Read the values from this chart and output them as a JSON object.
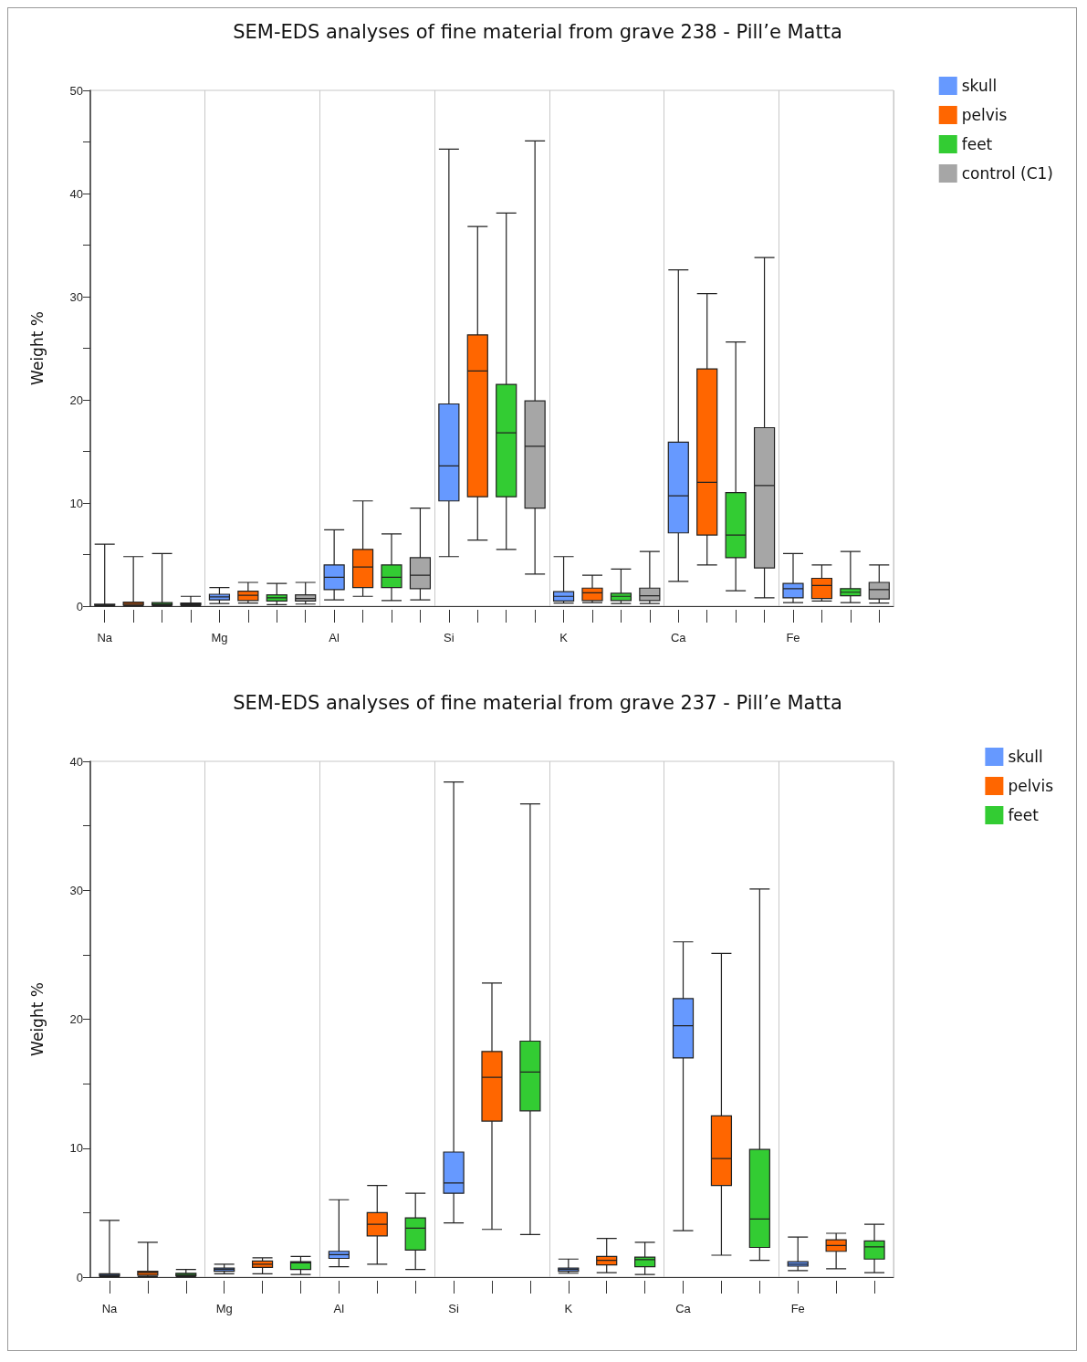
{
  "chart_data": [
    {
      "type": "box",
      "title": "SEM-EDS analyses of fine material from grave 238 - Pill’e Matta",
      "ylabel": "Weight %",
      "categories": [
        "Na",
        null,
        null,
        null,
        "Mg",
        null,
        null,
        null,
        "Al",
        null,
        null,
        null,
        "Si",
        null,
        null,
        null,
        "K",
        null,
        null,
        null,
        "Ca",
        null,
        null,
        null,
        "Fe",
        null,
        null,
        null
      ],
      "ylim": [
        0,
        50
      ],
      "yticks": [
        0,
        {
          "value": 5,
          "label": null
        },
        10,
        {
          "value": 15,
          "label": null
        },
        20,
        {
          "value": 25,
          "label": null
        },
        30,
        {
          "value": 35,
          "label": null
        },
        40,
        {
          "value": 45,
          "label": null
        },
        50
      ],
      "grid": "x",
      "legend": "top right",
      "series": [
        {
          "name": "skull",
          "color": "#6699ff",
          "boxes": [
            {
              "low": 0.05,
              "q1": 0.08,
              "median": 0.1,
              "q3": 0.18,
              "high": 6.0
            },
            null,
            null,
            null,
            {
              "low": 0.25,
              "q1": 0.6,
              "median": 0.9,
              "q3": 1.15,
              "high": 1.8
            },
            null,
            null,
            null,
            {
              "low": 0.6,
              "q1": 1.6,
              "median": 2.8,
              "q3": 4.0,
              "high": 7.4
            },
            null,
            null,
            null,
            {
              "low": 4.8,
              "q1": 10.2,
              "median": 13.6,
              "q3": 19.6,
              "high": 44.3
            },
            null,
            null,
            null,
            {
              "low": 0.3,
              "q1": 0.5,
              "median": 0.95,
              "q3": 1.4,
              "high": 4.8
            },
            null,
            null,
            null,
            {
              "low": 2.4,
              "q1": 7.1,
              "median": 10.7,
              "q3": 15.9,
              "high": 32.6
            },
            null,
            null,
            null,
            {
              "low": 0.35,
              "q1": 0.8,
              "median": 1.7,
              "q3": 2.2,
              "high": 5.1
            },
            null,
            null,
            null
          ]
        },
        {
          "name": "pelvis",
          "color": "#ff6600",
          "boxes": [
            null,
            {
              "low": 0.05,
              "q1": 0.1,
              "median": 0.25,
              "q3": 0.4,
              "high": 4.8
            },
            null,
            null,
            null,
            {
              "low": 0.3,
              "q1": 0.55,
              "median": 1.05,
              "q3": 1.45,
              "high": 2.3
            },
            null,
            null,
            null,
            {
              "low": 0.95,
              "q1": 1.8,
              "median": 3.8,
              "q3": 5.5,
              "high": 10.2
            },
            null,
            null,
            null,
            {
              "low": 6.4,
              "q1": 10.6,
              "median": 22.8,
              "q3": 26.3,
              "high": 36.8
            },
            null,
            null,
            null,
            {
              "low": 0.35,
              "q1": 0.55,
              "median": 1.3,
              "q3": 1.75,
              "high": 3.0
            },
            null,
            null,
            null,
            {
              "low": 4.0,
              "q1": 6.9,
              "median": 12.0,
              "q3": 23.0,
              "high": 30.3
            },
            null,
            null,
            null,
            {
              "low": 0.5,
              "q1": 0.75,
              "median": 2.0,
              "q3": 2.7,
              "high": 4.0
            },
            null,
            null
          ]
        },
        {
          "name": "feet",
          "color": "#33cc33",
          "boxes": [
            null,
            null,
            {
              "low": 0.05,
              "q1": 0.1,
              "median": 0.2,
              "q3": 0.35,
              "high": 5.1
            },
            null,
            null,
            null,
            {
              "low": 0.15,
              "q1": 0.5,
              "median": 0.8,
              "q3": 1.1,
              "high": 2.2
            },
            null,
            null,
            null,
            {
              "low": 0.55,
              "q1": 1.8,
              "median": 2.8,
              "q3": 4.0,
              "high": 7.0
            },
            null,
            null,
            null,
            {
              "low": 5.5,
              "q1": 10.6,
              "median": 16.8,
              "q3": 21.5,
              "high": 38.1
            },
            null,
            null,
            null,
            {
              "low": 0.25,
              "q1": 0.55,
              "median": 0.95,
              "q3": 1.25,
              "high": 3.6
            },
            null,
            null,
            null,
            {
              "low": 1.5,
              "q1": 4.7,
              "median": 6.9,
              "q3": 11.0,
              "high": 25.6
            },
            null,
            null,
            null,
            {
              "low": 0.35,
              "q1": 1.0,
              "median": 1.35,
              "q3": 1.7,
              "high": 5.3
            },
            null
          ]
        },
        {
          "name": "control (C1)",
          "color": "#a6a6a6",
          "boxes": [
            null,
            null,
            null,
            {
              "low": 0.05,
              "q1": 0.1,
              "median": 0.2,
              "q3": 0.3,
              "high": 0.95
            },
            null,
            null,
            null,
            {
              "low": 0.2,
              "q1": 0.5,
              "median": 0.75,
              "q3": 1.1,
              "high": 2.3
            },
            null,
            null,
            null,
            {
              "low": 0.6,
              "q1": 1.7,
              "median": 3.0,
              "q3": 4.7,
              "high": 9.5
            },
            null,
            null,
            null,
            {
              "low": 3.1,
              "q1": 9.5,
              "median": 15.5,
              "q3": 19.9,
              "high": 45.1
            },
            null,
            null,
            null,
            {
              "low": 0.25,
              "q1": 0.55,
              "median": 1.0,
              "q3": 1.75,
              "high": 5.3
            },
            null,
            null,
            null,
            {
              "low": 0.8,
              "q1": 3.7,
              "median": 11.7,
              "q3": 17.3,
              "high": 33.8
            },
            null,
            null,
            null,
            {
              "low": 0.3,
              "q1": 0.7,
              "median": 1.6,
              "q3": 2.3,
              "high": 4.0
            }
          ]
        }
      ]
    },
    {
      "type": "box",
      "title": "SEM-EDS analyses of fine material from grave 237 - Pill’e Matta",
      "ylabel": "Weight %",
      "categories": [
        "Na",
        null,
        null,
        "Mg",
        null,
        null,
        "Al",
        null,
        null,
        "Si",
        null,
        null,
        "K",
        null,
        null,
        "Ca",
        null,
        null,
        "Fe",
        null,
        null
      ],
      "ylim": [
        0,
        40
      ],
      "yticks": [
        0,
        {
          "value": 5,
          "label": null
        },
        10,
        {
          "value": 15,
          "label": null
        },
        20,
        {
          "value": 25,
          "label": null
        },
        30,
        {
          "value": 35,
          "label": null
        },
        40
      ],
      "grid": "x",
      "legend": "top right",
      "series": [
        {
          "name": "skull",
          "color": "#6699ff",
          "boxes": [
            {
              "low": 0.05,
              "q1": 0.08,
              "median": 0.15,
              "q3": 0.25,
              "high": 4.4
            },
            null,
            null,
            {
              "low": 0.25,
              "q1": 0.45,
              "median": 0.6,
              "q3": 0.7,
              "high": 1.0
            },
            null,
            null,
            {
              "low": 0.8,
              "q1": 1.45,
              "median": 1.75,
              "q3": 2.0,
              "high": 6.0
            },
            null,
            null,
            {
              "low": 4.2,
              "q1": 6.5,
              "median": 7.3,
              "q3": 9.7,
              "high": 38.4
            },
            null,
            null,
            {
              "low": 0.3,
              "q1": 0.45,
              "median": 0.6,
              "q3": 0.7,
              "high": 1.4
            },
            null,
            null,
            {
              "low": 3.6,
              "q1": 17.0,
              "median": 19.5,
              "q3": 21.6,
              "high": 26.0
            },
            null,
            null,
            {
              "low": 0.5,
              "q1": 0.85,
              "median": 1.0,
              "q3": 1.2,
              "high": 3.1
            },
            null,
            null
          ]
        },
        {
          "name": "pelvis",
          "color": "#ff6600",
          "boxes": [
            null,
            {
              "low": 0.05,
              "q1": 0.15,
              "median": 0.35,
              "q3": 0.45,
              "high": 2.7
            },
            null,
            null,
            {
              "low": 0.25,
              "q1": 0.75,
              "median": 1.0,
              "q3": 1.25,
              "high": 1.5
            },
            null,
            null,
            {
              "low": 1.0,
              "q1": 3.2,
              "median": 4.1,
              "q3": 5.0,
              "high": 7.1
            },
            null,
            null,
            {
              "low": 3.7,
              "q1": 12.1,
              "median": 15.5,
              "q3": 17.5,
              "high": 22.8
            },
            null,
            null,
            {
              "low": 0.35,
              "q1": 0.95,
              "median": 1.3,
              "q3": 1.6,
              "high": 3.0
            },
            null,
            null,
            {
              "low": 1.7,
              "q1": 7.1,
              "median": 9.2,
              "q3": 12.5,
              "high": 25.1
            },
            null,
            null,
            {
              "low": 0.65,
              "q1": 2.0,
              "median": 2.45,
              "q3": 2.9,
              "high": 3.4
            },
            null
          ]
        },
        {
          "name": "feet",
          "color": "#33cc33",
          "boxes": [
            null,
            null,
            {
              "low": 0.05,
              "q1": 0.1,
              "median": 0.2,
              "q3": 0.3,
              "high": 0.6
            },
            null,
            null,
            {
              "low": 0.2,
              "q1": 0.6,
              "median": 1.1,
              "q3": 1.2,
              "high": 1.6
            },
            null,
            null,
            {
              "low": 0.6,
              "q1": 2.1,
              "median": 3.8,
              "q3": 4.6,
              "high": 6.5
            },
            null,
            null,
            {
              "low": 3.3,
              "q1": 12.9,
              "median": 15.9,
              "q3": 18.3,
              "high": 36.7
            },
            null,
            null,
            {
              "low": 0.2,
              "q1": 0.8,
              "median": 1.35,
              "q3": 1.55,
              "high": 2.7
            },
            null,
            null,
            {
              "low": 1.3,
              "q1": 2.3,
              "median": 4.5,
              "q3": 9.9,
              "high": 30.1
            },
            null,
            null,
            {
              "low": 0.35,
              "q1": 1.4,
              "median": 2.35,
              "q3": 2.8,
              "high": 4.1
            }
          ]
        }
      ]
    }
  ]
}
